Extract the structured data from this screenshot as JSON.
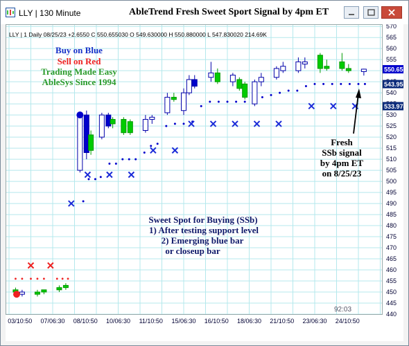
{
  "window": {
    "title": "LLY | 130 Minute",
    "chart_title": "AbleTrend Fresh Sweet Sport Signal by 4pm ET"
  },
  "info_line": "LLY | 1 Daily 08/25/23 +2.6550 C 550.655030 O 549.630000 H 550.880000 L 547.830020 214.69K",
  "legend_text": {
    "buy": "Buy on Blue",
    "sell": "Sell on Red",
    "tagline": "Trading Made Easy",
    "brand": "AbleSys Since 1994"
  },
  "annotations": {
    "ssb_title": "Sweet Spot for Buying (SSb)",
    "ssb_lines": [
      "1) After testing support level",
      "2) Emerging blue bar",
      "or closeup bar"
    ],
    "fresh_lines": [
      "Fresh",
      "SSb signal",
      "by 4pm ET",
      "on 8/25/23"
    ]
  },
  "time_label": "92:03",
  "price_tags": [
    {
      "value": "550.655",
      "color": "#0000cc"
    },
    {
      "value": "543.951",
      "color": "#0a2a7a"
    },
    {
      "value": "533.974",
      "color": "#0a2a7a"
    }
  ],
  "colors": {
    "up": "#00cc00",
    "down": "#0000cc",
    "neutral": "#ffffff",
    "grid": "#b4e8ec",
    "stop": "#0000cc",
    "sell_x": "#ee2222"
  },
  "chart_data": {
    "type": "candlestick",
    "y_ticks": [
      440,
      445,
      450,
      455,
      460,
      465,
      470,
      475,
      480,
      485,
      490,
      495,
      500,
      505,
      510,
      515,
      520,
      525,
      530,
      535,
      540,
      545,
      550,
      555,
      560,
      565,
      570
    ],
    "ylim": [
      440,
      571
    ],
    "x_ticks": [
      "03/10:50",
      "07/06:30",
      "08/10:50",
      "10/06:30",
      "11/10:50",
      "15/06:30",
      "16/10:50",
      "18/06:30",
      "21/10:50",
      "23/06:30",
      "24/10:50"
    ],
    "candles": [
      {
        "t": 0.3,
        "o": 451,
        "h": 452,
        "l": 449,
        "c": 450,
        "k": "g"
      },
      {
        "t": 0.6,
        "o": 450,
        "h": 451,
        "l": 448,
        "c": 449,
        "k": "n"
      },
      {
        "t": 1.3,
        "o": 449,
        "h": 451,
        "l": 448,
        "c": 450,
        "k": "g"
      },
      {
        "t": 1.6,
        "o": 450,
        "h": 451,
        "l": 449,
        "c": 451,
        "k": "g"
      },
      {
        "t": 2.3,
        "o": 451,
        "h": 453,
        "l": 450,
        "c": 452,
        "k": "g"
      },
      {
        "t": 2.6,
        "o": 452,
        "h": 454,
        "l": 451,
        "c": 453,
        "k": "g"
      },
      {
        "t": 3.25,
        "o": 505,
        "h": 531,
        "l": 504,
        "c": 530,
        "k": "n"
      },
      {
        "t": 3.55,
        "o": 530,
        "h": 532,
        "l": 510,
        "c": 513,
        "k": "b"
      },
      {
        "t": 3.75,
        "o": 514,
        "h": 523,
        "l": 512,
        "c": 521,
        "k": "g"
      },
      {
        "t": 4.25,
        "o": 520,
        "h": 531,
        "l": 519,
        "c": 530,
        "k": "n"
      },
      {
        "t": 4.55,
        "o": 530,
        "h": 531,
        "l": 524,
        "c": 525,
        "k": "b"
      },
      {
        "t": 4.75,
        "o": 526,
        "h": 529,
        "l": 524,
        "c": 528,
        "k": "g"
      },
      {
        "t": 5.25,
        "o": 528,
        "h": 529,
        "l": 521,
        "c": 522,
        "k": "g"
      },
      {
        "t": 5.55,
        "o": 522,
        "h": 528,
        "l": 521,
        "c": 527,
        "k": "g"
      },
      {
        "t": 6.25,
        "o": 523,
        "h": 530,
        "l": 522,
        "c": 528,
        "k": "n"
      },
      {
        "t": 6.55,
        "o": 528,
        "h": 530,
        "l": 526,
        "c": 529,
        "k": "n"
      },
      {
        "t": 7.25,
        "o": 531,
        "h": 540,
        "l": 530,
        "c": 538,
        "k": "n"
      },
      {
        "t": 7.55,
        "o": 538,
        "h": 540,
        "l": 536,
        "c": 537,
        "k": "g"
      },
      {
        "t": 8.0,
        "o": 532,
        "h": 542,
        "l": 530,
        "c": 540,
        "k": "n"
      },
      {
        "t": 8.25,
        "o": 540,
        "h": 548,
        "l": 539,
        "c": 546,
        "k": "n"
      },
      {
        "t": 8.5,
        "o": 546,
        "h": 548,
        "l": 542,
        "c": 543,
        "k": "b"
      },
      {
        "t": 9.25,
        "o": 547,
        "h": 554,
        "l": 545,
        "c": 549,
        "k": "n"
      },
      {
        "t": 9.55,
        "o": 549,
        "h": 551,
        "l": 544,
        "c": 545,
        "k": "g"
      },
      {
        "t": 10.25,
        "o": 545,
        "h": 549,
        "l": 543,
        "c": 548,
        "k": "n"
      },
      {
        "t": 10.55,
        "o": 546,
        "h": 547,
        "l": 541,
        "c": 542,
        "k": "g"
      },
      {
        "t": 10.8,
        "o": 544,
        "h": 545,
        "l": 537,
        "c": 538,
        "k": "g"
      },
      {
        "t": 11.25,
        "o": 535,
        "h": 546,
        "l": 534,
        "c": 545,
        "k": "n"
      },
      {
        "t": 11.55,
        "o": 545,
        "h": 549,
        "l": 543,
        "c": 547,
        "k": "n"
      },
      {
        "t": 12.25,
        "o": 547,
        "h": 552,
        "l": 546,
        "c": 551,
        "k": "n"
      },
      {
        "t": 12.55,
        "o": 550,
        "h": 554,
        "l": 549,
        "c": 552,
        "k": "n"
      },
      {
        "t": 13.25,
        "o": 550,
        "h": 556,
        "l": 549,
        "c": 554,
        "k": "n"
      },
      {
        "t": 13.55,
        "o": 553,
        "h": 556,
        "l": 551,
        "c": 554,
        "k": "n"
      },
      {
        "t": 14.25,
        "o": 557,
        "h": 558,
        "l": 549,
        "c": 551,
        "k": "g"
      },
      {
        "t": 14.55,
        "o": 551,
        "h": 555,
        "l": 550,
        "c": 552,
        "k": "g"
      },
      {
        "t": 15.25,
        "o": 554,
        "h": 558,
        "l": 550,
        "c": 551,
        "k": "g"
      },
      {
        "t": 15.55,
        "o": 551,
        "h": 553,
        "l": 549,
        "c": 550,
        "k": "g"
      },
      {
        "t": 16.25,
        "o": 549.6,
        "h": 550.9,
        "l": 547.8,
        "c": 550.7,
        "k": "n"
      }
    ],
    "stops": [
      [
        3.4,
        491
      ],
      [
        3.65,
        501
      ],
      [
        3.95,
        501
      ],
      [
        4.2,
        502
      ],
      [
        4.6,
        508
      ],
      [
        4.9,
        508
      ],
      [
        5.2,
        510
      ],
      [
        5.5,
        510
      ],
      [
        5.8,
        510
      ],
      [
        6.2,
        513
      ],
      [
        6.5,
        516
      ],
      [
        6.8,
        517
      ],
      [
        7.2,
        525
      ],
      [
        7.6,
        526
      ],
      [
        8.0,
        526
      ],
      [
        8.4,
        527
      ],
      [
        8.8,
        534
      ],
      [
        9.2,
        536
      ],
      [
        9.6,
        536
      ],
      [
        10.0,
        536
      ],
      [
        10.4,
        536
      ],
      [
        10.8,
        536
      ],
      [
        11.2,
        538
      ],
      [
        11.6,
        538
      ],
      [
        12.0,
        539
      ],
      [
        12.4,
        540
      ],
      [
        12.8,
        541
      ],
      [
        13.2,
        541
      ],
      [
        13.6,
        543
      ],
      [
        14.0,
        544
      ],
      [
        14.4,
        544
      ],
      [
        14.8,
        544
      ],
      [
        15.2,
        544
      ],
      [
        15.6,
        544
      ],
      [
        16.0,
        544
      ],
      [
        16.3,
        544
      ]
    ],
    "buy_x": [
      [
        2.85,
        490
      ],
      [
        3.6,
        503
      ],
      [
        4.6,
        503
      ],
      [
        5.6,
        503
      ],
      [
        6.6,
        514
      ],
      [
        7.6,
        514
      ],
      [
        8.35,
        526
      ],
      [
        9.35,
        526
      ],
      [
        10.35,
        526
      ],
      [
        11.35,
        526
      ],
      [
        12.35,
        526
      ],
      [
        13.85,
        534
      ],
      [
        14.85,
        534
      ],
      [
        15.85,
        534
      ]
    ],
    "sell_dots": [
      [
        0.3,
        456
      ],
      [
        0.6,
        456
      ],
      [
        1.0,
        456
      ],
      [
        1.3,
        456
      ],
      [
        1.6,
        456
      ],
      [
        2.2,
        456
      ],
      [
        2.45,
        456
      ],
      [
        2.7,
        456
      ]
    ],
    "sell_x": [
      [
        1.0,
        462
      ],
      [
        1.9,
        462
      ]
    ],
    "circles": [
      {
        "t": 0.35,
        "v": 449,
        "c": "#ee2222"
      },
      {
        "t": 3.25,
        "v": 530,
        "c": "#0000cc"
      }
    ]
  }
}
